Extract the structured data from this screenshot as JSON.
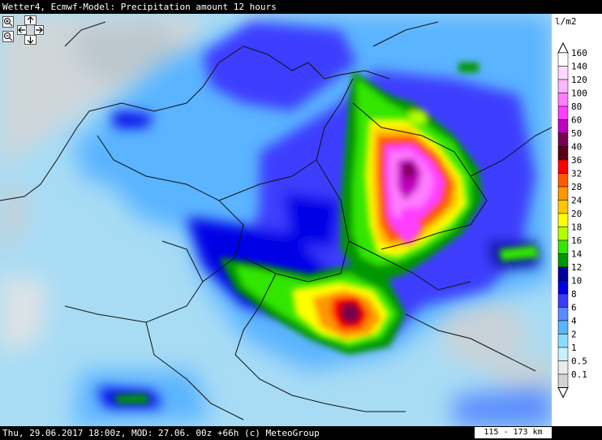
{
  "header": {
    "title": "Wetter4, Ecmwf-Model: Precipitation amount 12 hours"
  },
  "legend": {
    "unit": "l/m2",
    "levels": [
      {
        "label": "160",
        "color": "#ffffff"
      },
      {
        "label": "140",
        "color": "#ffd9ff"
      },
      {
        "label": "120",
        "color": "#ffb4ff"
      },
      {
        "label": "100",
        "color": "#ff7dff"
      },
      {
        "label": "80",
        "color": "#ff3cff"
      },
      {
        "label": "60",
        "color": "#c000c0"
      },
      {
        "label": "50",
        "color": "#780050"
      },
      {
        "label": "40",
        "color": "#5a0014"
      },
      {
        "label": "36",
        "color": "#ff0000"
      },
      {
        "label": "32",
        "color": "#ff5a00"
      },
      {
        "label": "28",
        "color": "#ff9600"
      },
      {
        "label": "24",
        "color": "#ffc800"
      },
      {
        "label": "20",
        "color": "#ffff00"
      },
      {
        "label": "18",
        "color": "#b4ff00"
      },
      {
        "label": "16",
        "color": "#32e600"
      },
      {
        "label": "14",
        "color": "#009600"
      },
      {
        "label": "12",
        "color": "#0000a0"
      },
      {
        "label": "10",
        "color": "#0000e6"
      },
      {
        "label": "8",
        "color": "#3c3cff"
      },
      {
        "label": "6",
        "color": "#5a8cff"
      },
      {
        "label": "4",
        "color": "#5ab4ff"
      },
      {
        "label": "2",
        "color": "#8cdcff"
      },
      {
        "label": "1",
        "color": "#c8f0ff"
      },
      {
        "label": "0.5",
        "color": "#ebebeb"
      },
      {
        "label": "0.1",
        "color": "#d2d2d2"
      }
    ]
  },
  "footer": {
    "info": "Thu, 29.06.2017 18:00z, MOD: 27.06. 00z +66h (c) MeteoGroup",
    "scale": "115 - 173 km"
  },
  "controls": {
    "zoom_in": "zoom-in",
    "zoom_out": "zoom-out",
    "pan": "pan-arrows"
  }
}
